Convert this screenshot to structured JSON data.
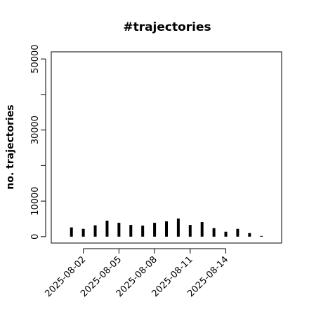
{
  "chart_data": {
    "type": "bar",
    "title": "#trajectories",
    "y_label": "no. trajectories",
    "categories": [
      null,
      "2025-08-02",
      null,
      null,
      "2025-08-05",
      null,
      null,
      "2025-08-08",
      null,
      null,
      "2025-08-11",
      null,
      null,
      "2025-08-14",
      null,
      null,
      null
    ],
    "values": [
      2600,
      2200,
      3200,
      4500,
      3900,
      3300,
      3100,
      3900,
      4300,
      5100,
      3300,
      4100,
      2400,
      1400,
      2200,
      1000,
      200
    ],
    "color": "#000000",
    "ylim": [
      -1800,
      52000
    ],
    "yticks": [
      0,
      10000,
      {
        "value": 20000,
        "label": null
      },
      30000,
      {
        "value": 40000,
        "label": null
      },
      50000
    ]
  }
}
